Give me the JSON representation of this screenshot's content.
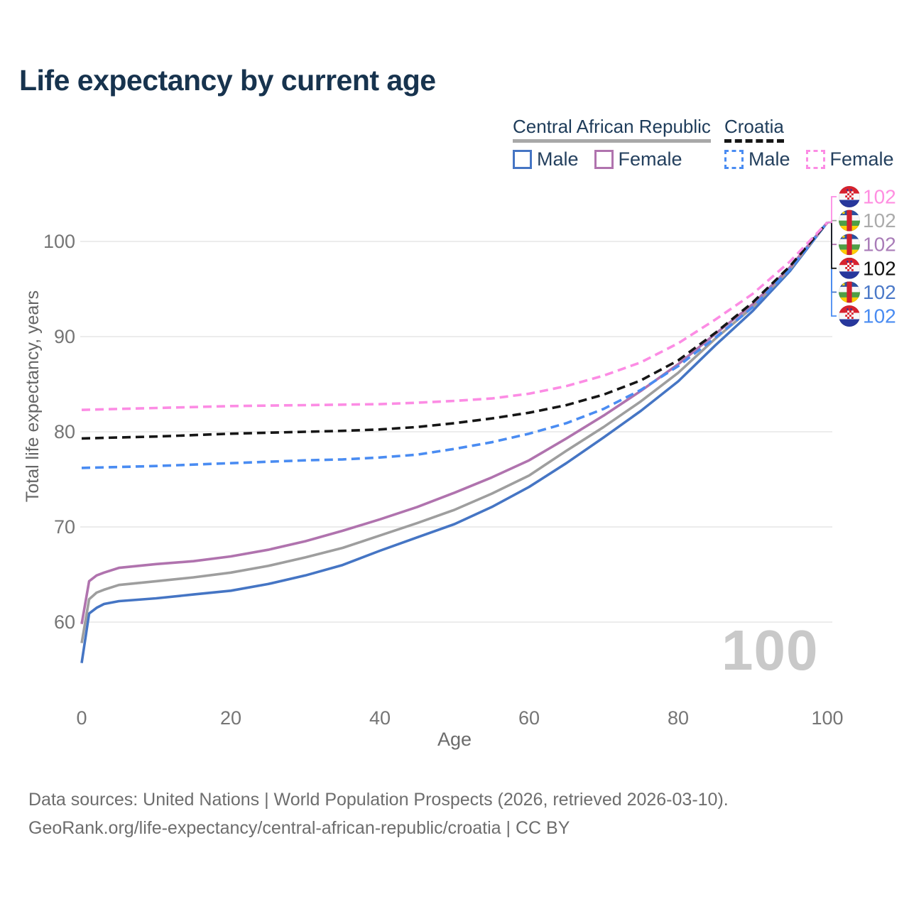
{
  "page": {
    "title": "Life expectancy by current age",
    "watermark_age": "100",
    "footer_line1": "Data sources: United Nations | World Population Prospects (2026, retrieved 2026-03-10).",
    "footer_line2": "GeoRank.org/life-expectancy/central-african-republic/croatia | CC BY"
  },
  "legend": {
    "groups": [
      {
        "label": "Central African Republic",
        "underline_style": "solid",
        "underline_color": "#a8a8a8",
        "items": [
          {
            "label": "Male",
            "swatch_color": "#4575c4",
            "dashed": false
          },
          {
            "label": "Female",
            "swatch_color": "#b073ae",
            "dashed": false
          }
        ]
      },
      {
        "label": "Croatia",
        "underline_style": "dashed",
        "underline_color": "#161616",
        "items": [
          {
            "label": "Male",
            "swatch_color": "#4a8cf2",
            "dashed": true
          },
          {
            "label": "Female",
            "swatch_color": "#fc8ce4",
            "dashed": true
          }
        ]
      }
    ]
  },
  "chart_data": {
    "type": "line",
    "title": "Life expectancy by current age",
    "xlabel": "Age",
    "ylabel": "Total life expectancy, years",
    "x_ticks": [
      0,
      20,
      40,
      60,
      80,
      100
    ],
    "y_ticks": [
      60,
      70,
      80,
      90,
      100
    ],
    "xlim": [
      0,
      100
    ],
    "ylim": [
      54,
      104
    ],
    "grid": "horizontal-only",
    "grid_color": "#ececec",
    "tick_color": "#757575",
    "legend_position": "top-right",
    "series": [
      {
        "id": "car-male",
        "name": "Central African Republic Male",
        "sex": "Male",
        "color": "#4575c4",
        "label_color": "#4b79c8",
        "dashed": false,
        "flag": "cf",
        "flag_name": "central-african-republic-flag",
        "end_label": "102",
        "end_row": 4,
        "points": [
          [
            0,
            55.7
          ],
          [
            1,
            60.9
          ],
          [
            2,
            61.5
          ],
          [
            3,
            61.9
          ],
          [
            5,
            62.2
          ],
          [
            10,
            62.5
          ],
          [
            15,
            62.9
          ],
          [
            20,
            63.3
          ],
          [
            25,
            64.0
          ],
          [
            30,
            64.9
          ],
          [
            35,
            66.0
          ],
          [
            40,
            67.5
          ],
          [
            45,
            68.9
          ],
          [
            50,
            70.3
          ],
          [
            55,
            72.1
          ],
          [
            60,
            74.2
          ],
          [
            65,
            76.7
          ],
          [
            70,
            79.4
          ],
          [
            75,
            82.2
          ],
          [
            80,
            85.3
          ],
          [
            85,
            89.1
          ],
          [
            90,
            92.7
          ],
          [
            95,
            96.9
          ],
          [
            100,
            102
          ]
        ]
      },
      {
        "id": "car-both",
        "name": "Central African Republic Both sexes",
        "sex": "Both",
        "color": "#9e9e9e",
        "label_color": "#ababab",
        "dashed": false,
        "flag": "cf",
        "flag_name": "central-african-republic-flag",
        "end_label": "102",
        "end_row": 1,
        "points": [
          [
            0,
            57.8
          ],
          [
            1,
            62.4
          ],
          [
            2,
            63.1
          ],
          [
            3,
            63.4
          ],
          [
            5,
            63.9
          ],
          [
            10,
            64.3
          ],
          [
            15,
            64.7
          ],
          [
            20,
            65.2
          ],
          [
            25,
            65.9
          ],
          [
            30,
            66.8
          ],
          [
            35,
            67.8
          ],
          [
            40,
            69.1
          ],
          [
            45,
            70.4
          ],
          [
            50,
            71.8
          ],
          [
            55,
            73.5
          ],
          [
            60,
            75.4
          ],
          [
            65,
            78.0
          ],
          [
            70,
            80.5
          ],
          [
            75,
            83.2
          ],
          [
            80,
            86.2
          ],
          [
            85,
            89.8
          ],
          [
            90,
            93.1
          ],
          [
            95,
            97.1
          ],
          [
            100,
            102
          ]
        ]
      },
      {
        "id": "car-female",
        "name": "Central African Republic Female",
        "sex": "Female",
        "color": "#b073ae",
        "label_color": "#a97cb8",
        "dashed": false,
        "flag": "cf",
        "flag_name": "central-african-republic-flag",
        "end_label": "102",
        "end_row": 2,
        "points": [
          [
            0,
            59.8
          ],
          [
            1,
            64.3
          ],
          [
            2,
            64.9
          ],
          [
            3,
            65.2
          ],
          [
            5,
            65.7
          ],
          [
            10,
            66.1
          ],
          [
            15,
            66.4
          ],
          [
            20,
            66.9
          ],
          [
            25,
            67.6
          ],
          [
            30,
            68.5
          ],
          [
            35,
            69.6
          ],
          [
            40,
            70.8
          ],
          [
            45,
            72.1
          ],
          [
            50,
            73.6
          ],
          [
            55,
            75.2
          ],
          [
            60,
            77.0
          ],
          [
            65,
            79.3
          ],
          [
            70,
            81.7
          ],
          [
            75,
            84.3
          ],
          [
            80,
            87.1
          ],
          [
            85,
            90.3
          ],
          [
            90,
            93.4
          ],
          [
            95,
            97.3
          ],
          [
            100,
            102
          ]
        ]
      },
      {
        "id": "hr-male",
        "name": "Croatia Male",
        "sex": "Male",
        "color": "#4a8cf2",
        "label_color": "#4a8cf2",
        "dashed": true,
        "flag": "hr",
        "flag_name": "croatia-flag",
        "end_label": "102",
        "end_row": 5,
        "points": [
          [
            0,
            76.2
          ],
          [
            5,
            76.3
          ],
          [
            10,
            76.4
          ],
          [
            15,
            76.55
          ],
          [
            20,
            76.7
          ],
          [
            25,
            76.85
          ],
          [
            30,
            77.0
          ],
          [
            35,
            77.1
          ],
          [
            40,
            77.3
          ],
          [
            45,
            77.6
          ],
          [
            50,
            78.2
          ],
          [
            55,
            78.9
          ],
          [
            60,
            79.8
          ],
          [
            65,
            80.9
          ],
          [
            70,
            82.4
          ],
          [
            75,
            84.4
          ],
          [
            80,
            86.9
          ],
          [
            85,
            89.9
          ],
          [
            90,
            93.1
          ],
          [
            95,
            97.1
          ],
          [
            100,
            102
          ]
        ]
      },
      {
        "id": "hr-both",
        "name": "Croatia Both sexes",
        "sex": "Both",
        "color": "#161616",
        "label_color": "#111111",
        "dashed": true,
        "flag": "hr",
        "flag_name": "croatia-flag",
        "end_label": "102",
        "end_row": 3,
        "points": [
          [
            0,
            79.3
          ],
          [
            5,
            79.4
          ],
          [
            10,
            79.5
          ],
          [
            15,
            79.65
          ],
          [
            20,
            79.8
          ],
          [
            25,
            79.9
          ],
          [
            30,
            80.0
          ],
          [
            35,
            80.1
          ],
          [
            40,
            80.25
          ],
          [
            45,
            80.5
          ],
          [
            50,
            80.9
          ],
          [
            55,
            81.4
          ],
          [
            60,
            82.0
          ],
          [
            65,
            82.8
          ],
          [
            70,
            83.9
          ],
          [
            75,
            85.4
          ],
          [
            80,
            87.5
          ],
          [
            85,
            90.4
          ],
          [
            90,
            93.6
          ],
          [
            95,
            97.4
          ],
          [
            100,
            102
          ]
        ]
      },
      {
        "id": "hr-female",
        "name": "Croatia Female",
        "sex": "Female",
        "color": "#fc8ce4",
        "label_color": "#ff8fe1",
        "dashed": true,
        "flag": "hr",
        "flag_name": "croatia-flag",
        "end_label": "102",
        "end_row": 0,
        "points": [
          [
            0,
            82.3
          ],
          [
            5,
            82.4
          ],
          [
            10,
            82.5
          ],
          [
            15,
            82.6
          ],
          [
            20,
            82.7
          ],
          [
            25,
            82.75
          ],
          [
            30,
            82.8
          ],
          [
            35,
            82.85
          ],
          [
            40,
            82.9
          ],
          [
            45,
            83.05
          ],
          [
            50,
            83.25
          ],
          [
            55,
            83.5
          ],
          [
            60,
            84.0
          ],
          [
            65,
            84.8
          ],
          [
            70,
            85.9
          ],
          [
            75,
            87.3
          ],
          [
            80,
            89.3
          ],
          [
            85,
            91.8
          ],
          [
            90,
            94.5
          ],
          [
            95,
            97.9
          ],
          [
            100,
            102
          ]
        ]
      }
    ]
  }
}
